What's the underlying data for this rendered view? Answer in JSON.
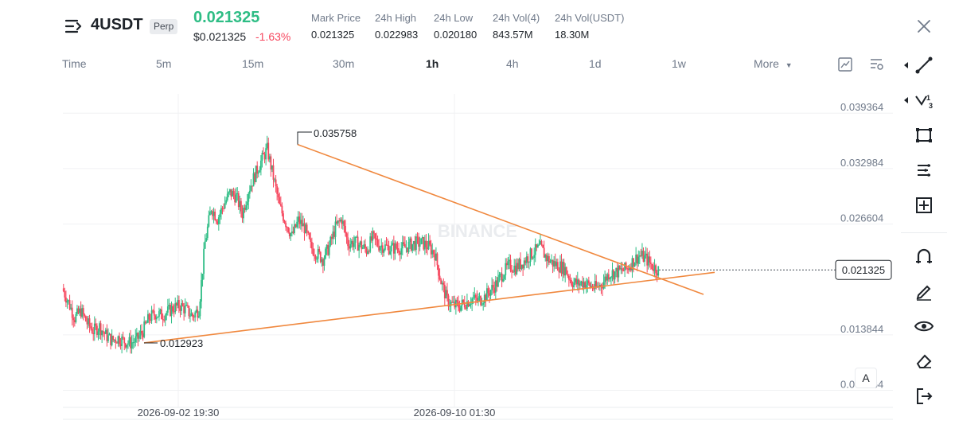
{
  "header": {
    "symbol": "4USDT",
    "badge": "Perp",
    "last_price": "0.021325",
    "usd_price": "$0.021325",
    "change": "-1.63%",
    "stats": [
      {
        "label": "Mark Price",
        "value": "0.021325"
      },
      {
        "label": "24h High",
        "value": "0.022983"
      },
      {
        "label": "24h Low",
        "value": "0.020180"
      },
      {
        "label": "24h Vol(4)",
        "value": "843.57M"
      },
      {
        "label": "24h Vol(USDT)",
        "value": "18.30M"
      }
    ]
  },
  "timeframes": {
    "items": [
      "Time",
      "5m",
      "15m",
      "30m",
      "1h",
      "4h",
      "1d",
      "1w"
    ],
    "active": "1h",
    "more_label": "More"
  },
  "chart_data": {
    "type": "candlestick",
    "symbol": "4USDT",
    "interval": "1h",
    "watermark": "BINANCE",
    "ylim": [
      0.0055,
      0.0425
    ],
    "y_ticks": [
      "0.039364",
      "0.032984",
      "0.026604",
      "0.021325",
      "0.013844",
      "0.007464"
    ],
    "x_ticks": [
      "2026-09-02 19:30",
      "2026-09-10 01:30"
    ],
    "current_price": "0.021325",
    "annotations": [
      {
        "label": "0.035758",
        "value": 0.035758,
        "kind": "swing-high"
      },
      {
        "label": "0.012923",
        "value": 0.012923,
        "kind": "swing-low"
      }
    ],
    "trendlines": [
      {
        "name": "upper",
        "from": 0.035758,
        "to": 0.02,
        "color": "#f0883e"
      },
      {
        "name": "lower",
        "from": 0.012923,
        "to": 0.021,
        "color": "#f0883e"
      }
    ],
    "price_path": [
      0.0192,
      0.0176,
      0.0158,
      0.0166,
      0.0152,
      0.0143,
      0.0148,
      0.0138,
      0.0132,
      0.0135,
      0.0131,
      0.0129,
      0.0133,
      0.0143,
      0.0158,
      0.0163,
      0.0161,
      0.0165,
      0.017,
      0.0172,
      0.0167,
      0.016,
      0.0168,
      0.0245,
      0.0285,
      0.0272,
      0.0288,
      0.0302,
      0.0298,
      0.0278,
      0.0305,
      0.0322,
      0.0338,
      0.0352,
      0.032,
      0.0286,
      0.0268,
      0.0252,
      0.027,
      0.0262,
      0.024,
      0.0232,
      0.0226,
      0.024,
      0.0262,
      0.0272,
      0.0244,
      0.0245,
      0.0242,
      0.0236,
      0.025,
      0.0242,
      0.024,
      0.0238,
      0.0239,
      0.0238,
      0.0242,
      0.0244,
      0.0244,
      0.024,
      0.0232,
      0.02,
      0.0178,
      0.0172,
      0.0172,
      0.0176,
      0.018,
      0.0178,
      0.0182,
      0.019,
      0.0198,
      0.021,
      0.0218,
      0.0216,
      0.0221,
      0.0228,
      0.0234,
      0.0239,
      0.0227,
      0.0221,
      0.0218,
      0.0214,
      0.02,
      0.0197,
      0.0199,
      0.0195,
      0.0192,
      0.0198,
      0.0209,
      0.021,
      0.0212,
      0.0215,
      0.0224,
      0.023,
      0.0226,
      0.0218,
      0.0213
    ]
  }
}
